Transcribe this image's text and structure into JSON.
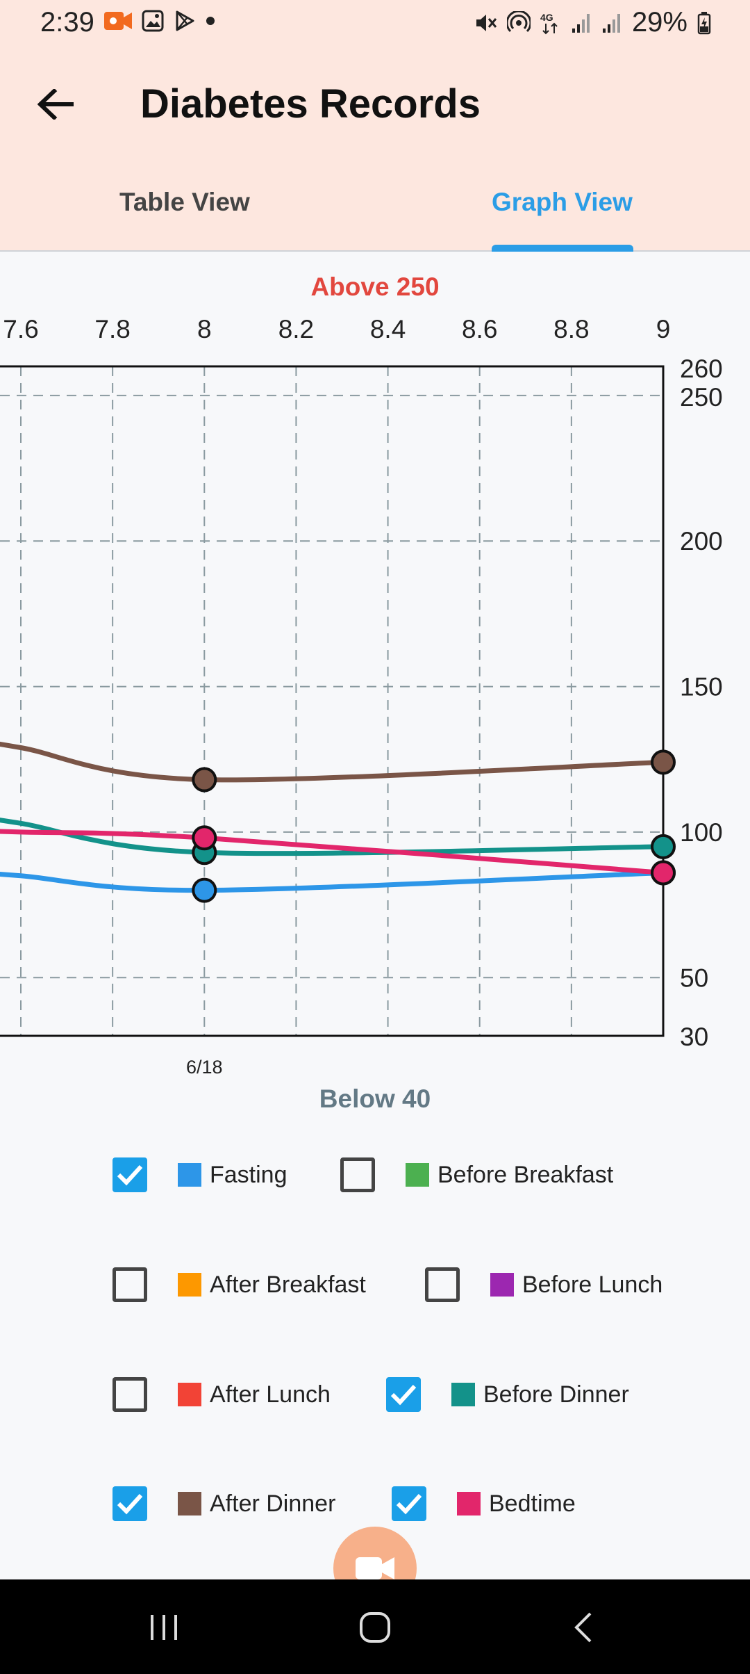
{
  "status_bar": {
    "time": "2:39",
    "battery": "29%",
    "icons_left": [
      "video-record-icon",
      "gallery-icon",
      "play-store-icon",
      "dot-icon"
    ],
    "icons_right": [
      "mute-icon",
      "hotspot-icon",
      "network-4g-icon",
      "signal-icon",
      "signal-icon",
      "battery-charging-icon"
    ]
  },
  "header": {
    "title": "Diabetes Records",
    "back_icon": "arrow-left-icon"
  },
  "tabs": [
    {
      "label": "Table View",
      "active": false
    },
    {
      "label": "Graph View",
      "active": true
    }
  ],
  "chart_data": {
    "type": "line",
    "above_label": "Above 250",
    "below_label": "Below 40",
    "x_ticks": [
      "7.6",
      "7.8",
      "8",
      "8.2",
      "8.4",
      "8.6",
      "8.8",
      "9"
    ],
    "y_ticks": [
      "260",
      "250",
      "200",
      "150",
      "100",
      "50",
      "30"
    ],
    "xlim": [
      7.6,
      9
    ],
    "ylim": [
      30,
      260
    ],
    "date_labels": [
      {
        "x": 8,
        "label": "6/18"
      }
    ],
    "grid": true,
    "series": [
      {
        "name": "Fasting",
        "color": "#2d96e8",
        "points": [
          {
            "x": 7.6,
            "y": 85
          },
          {
            "x": 8,
            "y": 80
          },
          {
            "x": 9,
            "y": 86
          }
        ]
      },
      {
        "name": "Before Dinner",
        "color": "#13928a",
        "points": [
          {
            "x": 7.6,
            "y": 103
          },
          {
            "x": 8,
            "y": 93
          },
          {
            "x": 9,
            "y": 95
          }
        ]
      },
      {
        "name": "After Dinner",
        "color": "#7a5547",
        "points": [
          {
            "x": 7.6,
            "y": 129
          },
          {
            "x": 8,
            "y": 118
          },
          {
            "x": 9,
            "y": 124
          }
        ]
      },
      {
        "name": "Bedtime",
        "color": "#e2266b",
        "points": [
          {
            "x": 7.6,
            "y": 100
          },
          {
            "x": 8,
            "y": 98
          },
          {
            "x": 9,
            "y": 86
          }
        ]
      }
    ]
  },
  "legend": {
    "items": [
      {
        "label": "Fasting",
        "color": "#2d96e8",
        "checked": true
      },
      {
        "label": "Before Breakfast",
        "color": "#4cb050",
        "checked": false
      },
      {
        "label": "After Breakfast",
        "color": "#fd9800",
        "checked": false
      },
      {
        "label": "Before Lunch",
        "color": "#9c27b0",
        "checked": false
      },
      {
        "label": "After Lunch",
        "color": "#f24336",
        "checked": false
      },
      {
        "label": "Before Dinner",
        "color": "#13928a",
        "checked": true
      },
      {
        "label": "After Dinner",
        "color": "#7a5547",
        "checked": true
      },
      {
        "label": "Bedtime",
        "color": "#e2266b",
        "checked": true
      }
    ]
  },
  "nav": {
    "recent": "recent-apps-icon",
    "home": "home-icon",
    "back": "nav-back-icon"
  }
}
